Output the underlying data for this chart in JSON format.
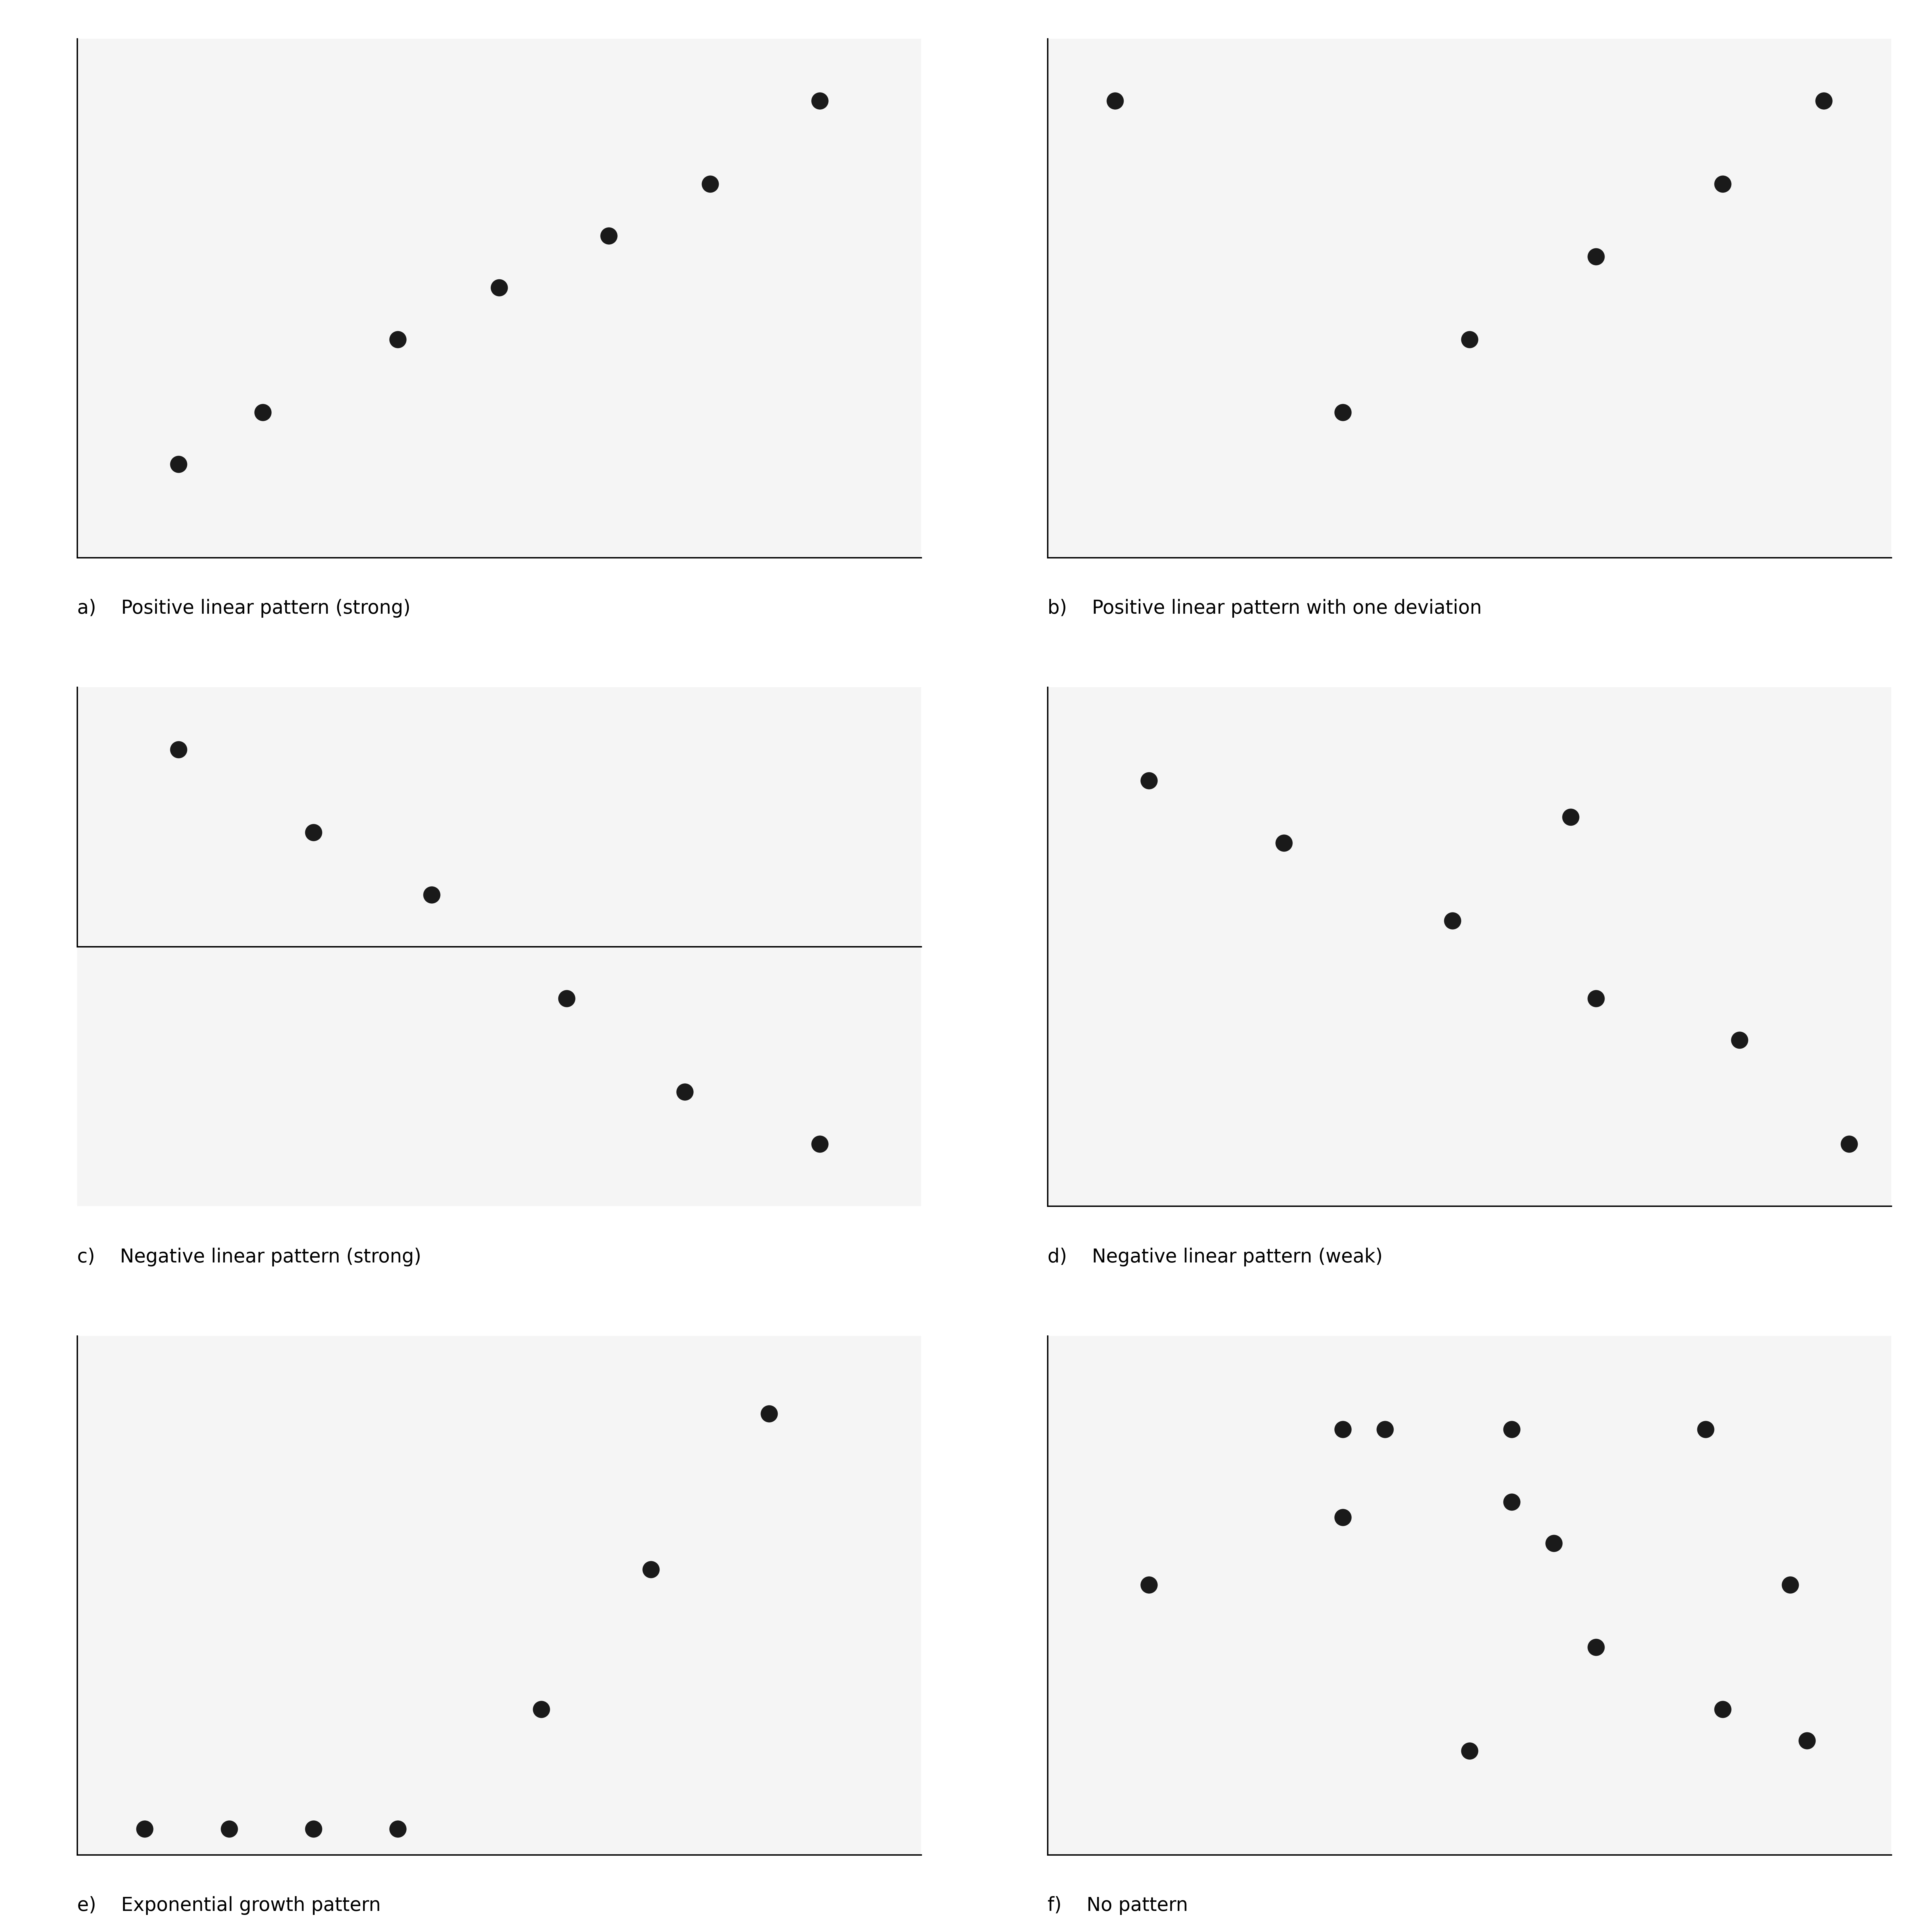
{
  "background_color": "#f5f5f5",
  "dot_color": "#1a1a1a",
  "dot_size": 120,
  "linewidth": 3.5,
  "label_fontsize": 48,
  "label_font": "Georgia",
  "plots": [
    {
      "label": "a)  Positive linear pattern (strong)",
      "x": [
        0.12,
        0.22,
        0.38,
        0.5,
        0.63,
        0.75,
        0.88
      ],
      "y": [
        0.18,
        0.28,
        0.42,
        0.52,
        0.62,
        0.72,
        0.88
      ],
      "has_mid_xaxis": false
    },
    {
      "label": "b)  Positive linear pattern with one deviation",
      "x": [
        0.08,
        0.35,
        0.5,
        0.65,
        0.8,
        0.92
      ],
      "y": [
        0.88,
        0.28,
        0.42,
        0.58,
        0.72,
        0.88
      ],
      "has_mid_xaxis": false
    },
    {
      "label": "c)  Negative linear pattern (strong)",
      "x": [
        0.12,
        0.28,
        0.42,
        0.58,
        0.72,
        0.88
      ],
      "y": [
        0.88,
        0.72,
        0.6,
        0.4,
        0.22,
        0.12
      ],
      "has_mid_xaxis": true
    },
    {
      "label": "d)  Negative linear pattern (weak)",
      "x": [
        0.12,
        0.28,
        0.48,
        0.62,
        0.65,
        0.82,
        0.95
      ],
      "y": [
        0.82,
        0.7,
        0.55,
        0.75,
        0.4,
        0.32,
        0.12
      ],
      "has_mid_xaxis": false
    },
    {
      "label": "e)  Exponential growth pattern",
      "x": [
        0.08,
        0.18,
        0.28,
        0.38,
        0.55,
        0.68,
        0.82
      ],
      "y": [
        0.05,
        0.05,
        0.05,
        0.05,
        0.28,
        0.55,
        0.85
      ],
      "has_mid_xaxis": false
    },
    {
      "label": "f)  No pattern",
      "x": [
        0.12,
        0.35,
        0.4,
        0.55,
        0.6,
        0.78,
        0.88,
        0.35,
        0.55,
        0.65,
        0.8,
        0.9,
        0.5
      ],
      "y": [
        0.52,
        0.82,
        0.82,
        0.82,
        0.6,
        0.82,
        0.52,
        0.65,
        0.68,
        0.4,
        0.28,
        0.22,
        0.2
      ],
      "has_mid_xaxis": false
    }
  ]
}
